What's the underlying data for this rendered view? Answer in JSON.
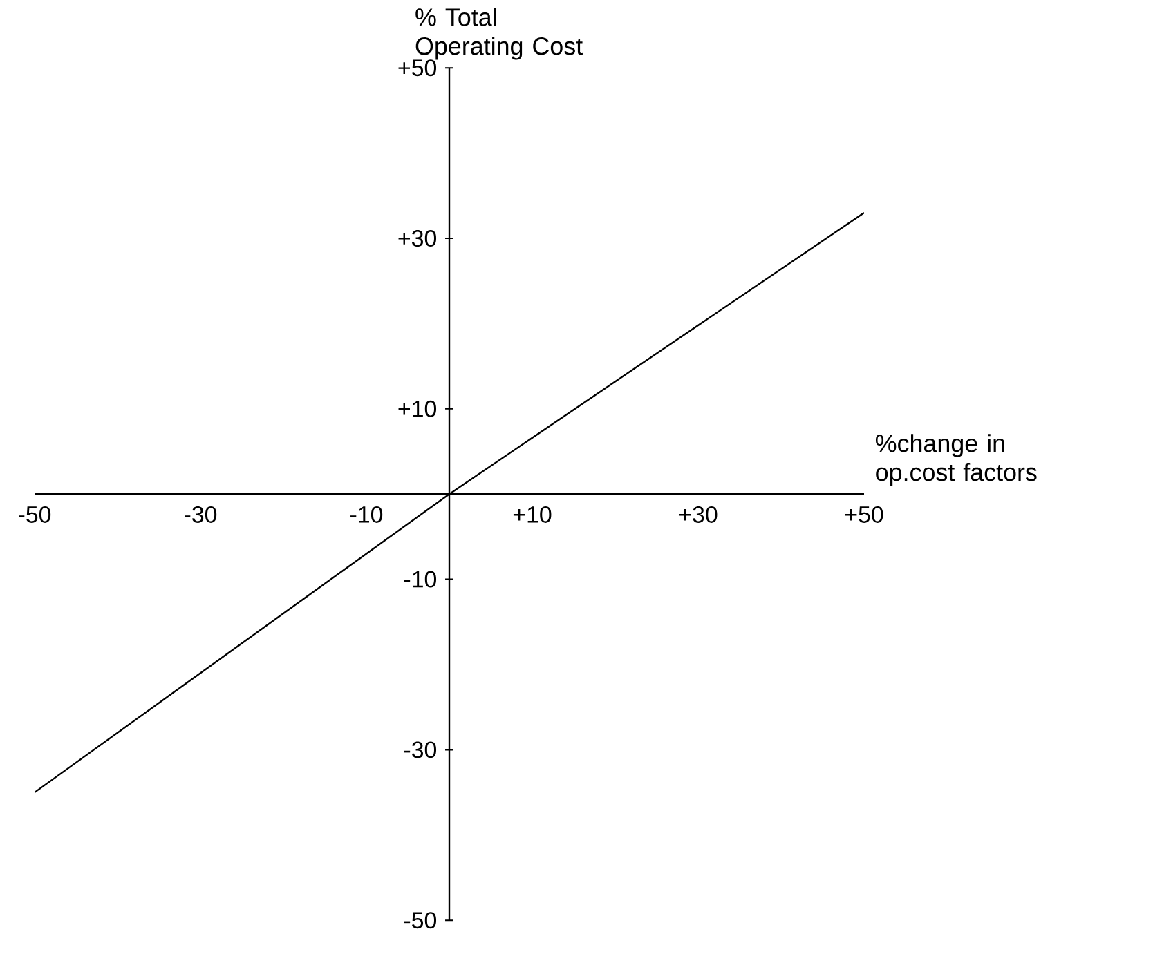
{
  "chart_data": {
    "type": "line",
    "xlabel": "%change in op.cost factors",
    "ylabel": "% Total Operating Cost",
    "x": [
      -50,
      0,
      50
    ],
    "values": [
      -35,
      0,
      33
    ],
    "color": "#000000",
    "xlim": [
      -50,
      50
    ],
    "ylim": [
      -50,
      50
    ],
    "xticks": [
      {
        "value": -50,
        "label": "-50"
      },
      {
        "value": -30,
        "label": "-30"
      },
      {
        "value": -10,
        "label": "-10"
      },
      {
        "value": 10,
        "label": "+10"
      },
      {
        "value": 30,
        "label": "+30"
      },
      {
        "value": 50,
        "label": "+50"
      }
    ],
    "yticks": [
      {
        "value": -50,
        "label": "-50"
      },
      {
        "value": -30,
        "label": "-30"
      },
      {
        "value": -10,
        "label": "-10"
      },
      {
        "value": 10,
        "label": "+10"
      },
      {
        "value": 30,
        "label": "+30"
      },
      {
        "value": 50,
        "label": "+50"
      }
    ],
    "grid": false,
    "marker": "none",
    "line_style": "solid"
  }
}
